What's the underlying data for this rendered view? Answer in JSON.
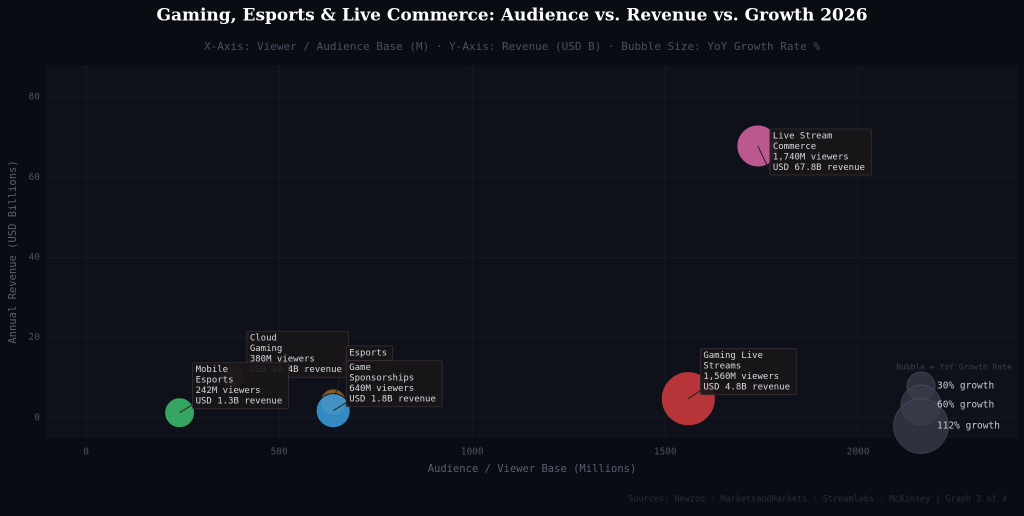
{
  "chart_data": {
    "type": "bubble",
    "title": "Gaming, Esports & Live Commerce: Audience vs. Revenue vs. Growth  2026",
    "subtitle": "X-Axis: Viewer / Audience Base (M)  ·  Y-Axis: Revenue (USD B)  ·  Bubble Size: YoY Growth Rate %",
    "x_label": "Audience / Viewer Base (Millions)",
    "y_label": "Annual Revenue (USD Billions)",
    "source": "Sources: Newzoo · MarketsandMarkets · Streamlabs · McKinsey  |  Graph 3 of 4",
    "xlim": [
      -104,
      2414
    ],
    "ylim": [
      -5,
      88
    ],
    "xticks": [
      0,
      500,
      1000,
      1500,
      2000
    ],
    "yticks": [
      0,
      20,
      40,
      60,
      80
    ],
    "grid": true,
    "points": [
      {
        "color": "#5a3f22",
        "x": 380,
        "y": 10.4,
        "growth": 21,
        "label": [
          "Cloud",
          "Gaming",
          "380M viewers",
          "USD 10.4B revenue"
        ]
      },
      {
        "color": "#9a6428",
        "x": 640,
        "y": 4,
        "growth": 25,
        "label": [
          "Esports"
        ]
      },
      {
        "color": "#3cb96b",
        "x": 242,
        "y": 1.3,
        "growth": 33,
        "label": [
          "Mobile",
          "Esports",
          "242M viewers",
          "USD 1.3B revenue"
        ]
      },
      {
        "color": "#3a9ad9",
        "x": 640,
        "y": 1.8,
        "growth": 43,
        "label": [
          "Game",
          "Sponsorships",
          "640M viewers",
          "USD 1.8B revenue"
        ]
      },
      {
        "color": "#d03a3e",
        "x": 1560,
        "y": 4.8,
        "growth": 108,
        "label": [
          "Gaming Live",
          "Streams",
          "1,560M viewers",
          "USD 4.8B revenue"
        ]
      },
      {
        "color": "#d4639e",
        "x": 1740,
        "y": 67.8,
        "growth": 65,
        "label": [
          "Live Stream",
          "Commerce",
          "1,740M viewers",
          "USD 67.8B revenue"
        ]
      }
    ],
    "size_legend": {
      "title": "Bubble = YoY Growth Rate",
      "sizes": [
        {
          "value": 30,
          "label": "30% growth"
        },
        {
          "value": 60,
          "label": "60% growth"
        },
        {
          "value": 112,
          "label": "112% growth"
        }
      ]
    }
  }
}
